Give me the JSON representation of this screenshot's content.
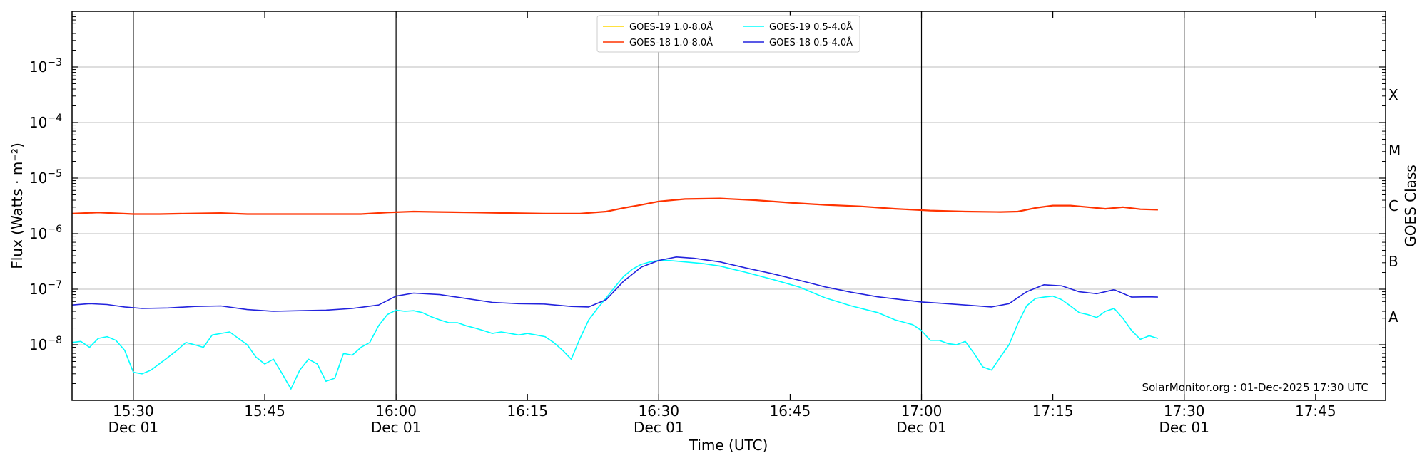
{
  "chart_data": {
    "type": "line",
    "xlabel": "Time (UTC)",
    "ylabel": "Flux (Watts · m⁻²)",
    "right_ylabel": "GOES Class",
    "x_range": [
      "15:23",
      "17:53"
    ],
    "ylim": [
      1e-09,
      0.01
    ],
    "y_scale": "log",
    "grid": "horizontal",
    "legend_position": "top-center",
    "credit": "SolarMonitor.org : 01-Dec-2025 17:30 UTC",
    "x_ticks": [
      {
        "time": "15:30",
        "date": "Dec 01",
        "major": true
      },
      {
        "time": "15:45",
        "date": "",
        "major": false
      },
      {
        "time": "16:00",
        "date": "Dec 01",
        "major": true
      },
      {
        "time": "16:15",
        "date": "",
        "major": false
      },
      {
        "time": "16:30",
        "date": "Dec 01",
        "major": true
      },
      {
        "time": "16:45",
        "date": "",
        "major": false
      },
      {
        "time": "17:00",
        "date": "Dec 01",
        "major": true
      },
      {
        "time": "17:15",
        "date": "",
        "major": false
      },
      {
        "time": "17:30",
        "date": "Dec 01",
        "major": true
      },
      {
        "time": "17:45",
        "date": "",
        "major": false
      }
    ],
    "y_ticks": [
      {
        "exp": -8,
        "label": "10"
      },
      {
        "exp": -7,
        "label": "10"
      },
      {
        "exp": -6,
        "label": "10"
      },
      {
        "exp": -5,
        "label": "10"
      },
      {
        "exp": -4,
        "label": "10"
      },
      {
        "exp": -3,
        "label": "10"
      }
    ],
    "classes": [
      {
        "label": "X",
        "value": 0.0001
      },
      {
        "label": "M",
        "value": 1e-05
      },
      {
        "label": "C",
        "value": 1e-06
      },
      {
        "label": "B",
        "value": 1e-07
      },
      {
        "label": "A",
        "value": 1e-08
      }
    ],
    "series": [
      {
        "name": "GOES-19 1.0-8.0Å",
        "color": "#FFD700",
        "time": [],
        "values": []
      },
      {
        "name": "GOES-18 1.0-8.0Å",
        "color": "#FF3300",
        "time": [
          "15:23",
          "15:26",
          "15:30",
          "15:33",
          "15:36",
          "15:40",
          "15:43",
          "15:47",
          "15:50",
          "15:53",
          "15:56",
          "15:59",
          "16:02",
          "16:05",
          "16:09",
          "16:13",
          "16:17",
          "16:21",
          "16:24",
          "16:26",
          "16:28",
          "16:30",
          "16:33",
          "16:37",
          "16:41",
          "16:45",
          "16:49",
          "16:53",
          "16:57",
          "17:01",
          "17:05",
          "17:09",
          "17:11",
          "17:13",
          "17:15",
          "17:17",
          "17:19",
          "17:21",
          "17:23",
          "17:25",
          "17:27"
        ],
        "values": [
          2.3e-06,
          2.4e-06,
          2.25e-06,
          2.25e-06,
          2.3e-06,
          2.35e-06,
          2.25e-06,
          2.25e-06,
          2.25e-06,
          2.25e-06,
          2.25e-06,
          2.4e-06,
          2.5e-06,
          2.45e-06,
          2.4e-06,
          2.35e-06,
          2.3e-06,
          2.3e-06,
          2.5e-06,
          2.9e-06,
          3.3e-06,
          3.8e-06,
          4.2e-06,
          4.3e-06,
          4e-06,
          3.6e-06,
          3.3e-06,
          3.1e-06,
          2.8e-06,
          2.6e-06,
          2.5e-06,
          2.45e-06,
          2.5e-06,
          2.9e-06,
          3.2e-06,
          3.2e-06,
          3e-06,
          2.8e-06,
          3e-06,
          2.75e-06,
          2.7e-06
        ]
      },
      {
        "name": "GOES-19 0.5-4.0Å",
        "color": "#00FFFF",
        "time": [
          "15:23",
          "15:24",
          "15:25",
          "15:26",
          "15:27",
          "15:28",
          "15:29",
          "15:30",
          "15:31",
          "15:32",
          "15:34",
          "15:35",
          "15:36",
          "15:37",
          "15:38",
          "15:39",
          "15:40",
          "15:41",
          "15:42",
          "15:43",
          "15:44",
          "15:45",
          "15:46",
          "15:47",
          "15:48",
          "15:49",
          "15:50",
          "15:51",
          "15:52",
          "15:53",
          "15:54",
          "15:55",
          "15:56",
          "15:57",
          "15:58",
          "15:59",
          "16:00",
          "16:01",
          "16:02",
          "16:03",
          "16:04",
          "16:05",
          "16:06",
          "16:07",
          "16:08",
          "16:09",
          "16:10",
          "16:11",
          "16:12",
          "16:13",
          "16:14",
          "16:15",
          "16:16",
          "16:17",
          "16:18",
          "16:19",
          "16:20",
          "16:21",
          "16:22",
          "16:23",
          "16:24",
          "16:25",
          "16:26",
          "16:27",
          "16:28",
          "16:29",
          "16:30",
          "16:31",
          "16:32",
          "16:33",
          "16:35",
          "16:37",
          "16:40",
          "16:43",
          "16:46",
          "16:49",
          "16:52",
          "16:55",
          "16:57",
          "16:59",
          "17:00",
          "17:01",
          "17:02",
          "17:03",
          "17:04",
          "17:05",
          "17:06",
          "17:07",
          "17:08",
          "17:09",
          "17:10",
          "17:11",
          "17:12",
          "17:13",
          "17:14",
          "17:15",
          "17:16",
          "17:17",
          "17:18",
          "17:19",
          "17:20",
          "17:21",
          "17:22",
          "17:23",
          "17:24",
          "17:25",
          "17:26",
          "17:27"
        ],
        "values": [
          1.1e-08,
          1.15e-08,
          9e-09,
          1.3e-08,
          1.4e-08,
          1.2e-08,
          8e-09,
          3.2e-09,
          3e-09,
          3.5e-09,
          6e-09,
          8e-09,
          1.1e-08,
          1e-08,
          9e-09,
          1.5e-08,
          1.6e-08,
          1.7e-08,
          1.3e-08,
          1e-08,
          6e-09,
          4.5e-09,
          5.5e-09,
          3e-09,
          1.6e-09,
          3.5e-09,
          5.5e-09,
          4.5e-09,
          2.2e-09,
          2.5e-09,
          7e-09,
          6.5e-09,
          9e-09,
          1.1e-08,
          2.2e-08,
          3.5e-08,
          4.2e-08,
          4e-08,
          4.1e-08,
          3.8e-08,
          3.2e-08,
          2.8e-08,
          2.5e-08,
          2.5e-08,
          2.2e-08,
          2e-08,
          1.8e-08,
          1.6e-08,
          1.7e-08,
          1.6e-08,
          1.5e-08,
          1.6e-08,
          1.5e-08,
          1.4e-08,
          1.1e-08,
          8e-09,
          5.5e-09,
          1.3e-08,
          2.8e-08,
          4.5e-08,
          7e-08,
          1.1e-07,
          1.7e-07,
          2.3e-07,
          2.8e-07,
          3.1e-07,
          3.3e-07,
          3.3e-07,
          3.2e-07,
          3.1e-07,
          2.9e-07,
          2.6e-07,
          2e-07,
          1.5e-07,
          1.1e-07,
          7e-08,
          5e-08,
          3.8e-08,
          2.8e-08,
          2.3e-08,
          1.8e-08,
          1.2e-08,
          1.2e-08,
          1.05e-08,
          1e-08,
          1.15e-08,
          7e-09,
          4e-09,
          3.5e-09,
          6e-09,
          1e-08,
          2.4e-08,
          5e-08,
          6.8e-08,
          7.2e-08,
          7.5e-08,
          6.5e-08,
          5e-08,
          3.8e-08,
          3.5e-08,
          3.1e-08,
          4e-08,
          4.5e-08,
          3e-08,
          1.8e-08,
          1.25e-08,
          1.45e-08,
          1.3e-08
        ]
      },
      {
        "name": "GOES-18 0.5-4.0Å",
        "color": "#2222DD",
        "time": [
          "15:23",
          "15:25",
          "15:27",
          "15:29",
          "15:31",
          "15:34",
          "15:37",
          "15:40",
          "15:43",
          "15:46",
          "15:49",
          "15:52",
          "15:55",
          "15:58",
          "16:00",
          "16:02",
          "16:05",
          "16:08",
          "16:11",
          "16:14",
          "16:17",
          "16:20",
          "16:22",
          "16:24",
          "16:26",
          "16:28",
          "16:30",
          "16:32",
          "16:34",
          "16:37",
          "16:40",
          "16:43",
          "16:46",
          "16:49",
          "16:52",
          "16:55",
          "16:58",
          "17:00",
          "17:02",
          "17:05",
          "17:08",
          "17:10",
          "17:12",
          "17:14",
          "17:16",
          "17:18",
          "17:20",
          "17:22",
          "17:24",
          "17:26",
          "17:27"
        ],
        "values": [
          5.2e-08,
          5.5e-08,
          5.3e-08,
          4.8e-08,
          4.5e-08,
          4.6e-08,
          4.9e-08,
          5e-08,
          4.3e-08,
          4e-08,
          4.1e-08,
          4.2e-08,
          4.5e-08,
          5.2e-08,
          7.5e-08,
          8.5e-08,
          8e-08,
          6.8e-08,
          5.8e-08,
          5.5e-08,
          5.4e-08,
          4.9e-08,
          4.8e-08,
          6.5e-08,
          1.4e-07,
          2.5e-07,
          3.3e-07,
          3.8e-07,
          3.6e-07,
          3.1e-07,
          2.4e-07,
          1.9e-07,
          1.45e-07,
          1.1e-07,
          8.8e-08,
          7.3e-08,
          6.4e-08,
          5.9e-08,
          5.6e-08,
          5.2e-08,
          4.8e-08,
          5.5e-08,
          9e-08,
          1.2e-07,
          1.15e-07,
          9e-08,
          8.3e-08,
          9.8e-08,
          7.2e-08,
          7.3e-08,
          7.2e-08
        ]
      }
    ]
  }
}
